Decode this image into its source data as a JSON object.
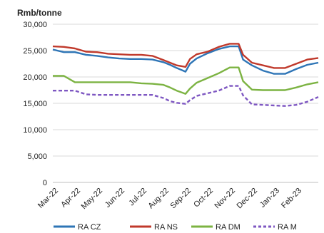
{
  "chart_data": {
    "type": "line",
    "y_unit": "Rmb/tonne",
    "ylim": [
      0,
      30000
    ],
    "y_ticks": [
      "30,000",
      "25,000",
      "20,000",
      "15,000",
      "10,000",
      "5,000",
      "0"
    ],
    "y_tick_values": [
      30000,
      25000,
      20000,
      15000,
      10000,
      5000,
      0
    ],
    "x_tick_labels": [
      "Mar-22",
      "Apr-22",
      "May-22",
      "Jun-22",
      "Jul-22",
      "Aug-22",
      "Sep-22",
      "Oct-22",
      "Nov-22",
      "Dec-22",
      "Jan-23",
      "Feb-23"
    ],
    "x_range": [
      "Mar-22",
      "Mar-23"
    ],
    "grid": "horizontal",
    "legend_position": "bottom",
    "series": [
      {
        "name": "RA CZ",
        "color": "#2e75b6",
        "dash": "solid",
        "points": [
          [
            0,
            25200
          ],
          [
            0.5,
            24700
          ],
          [
            1,
            24700
          ],
          [
            1.5,
            24200
          ],
          [
            2,
            24000
          ],
          [
            2.5,
            23700
          ],
          [
            3,
            23500
          ],
          [
            3.5,
            23400
          ],
          [
            4,
            23400
          ],
          [
            4.5,
            23300
          ],
          [
            5,
            22800
          ],
          [
            5.3,
            22300
          ],
          [
            5.6,
            21700
          ],
          [
            6,
            21000
          ],
          [
            6.2,
            22500
          ],
          [
            6.5,
            23500
          ],
          [
            7,
            24500
          ],
          [
            7.5,
            25300
          ],
          [
            8,
            25800
          ],
          [
            8.4,
            25800
          ],
          [
            8.6,
            23300
          ],
          [
            9,
            22200
          ],
          [
            9.5,
            21200
          ],
          [
            10,
            20600
          ],
          [
            10.5,
            20600
          ],
          [
            11,
            21500
          ],
          [
            11.5,
            22300
          ],
          [
            12,
            22700
          ]
        ]
      },
      {
        "name": "RA NS",
        "color": "#c0392b",
        "dash": "solid",
        "points": [
          [
            0,
            25800
          ],
          [
            0.5,
            25700
          ],
          [
            1,
            25400
          ],
          [
            1.5,
            24800
          ],
          [
            2,
            24700
          ],
          [
            2.5,
            24400
          ],
          [
            3,
            24300
          ],
          [
            3.5,
            24200
          ],
          [
            4,
            24200
          ],
          [
            4.5,
            24000
          ],
          [
            5,
            23200
          ],
          [
            5.3,
            22700
          ],
          [
            5.6,
            22200
          ],
          [
            6,
            21900
          ],
          [
            6.2,
            23400
          ],
          [
            6.5,
            24300
          ],
          [
            7,
            24800
          ],
          [
            7.5,
            25700
          ],
          [
            8,
            26300
          ],
          [
            8.4,
            26300
          ],
          [
            8.6,
            24200
          ],
          [
            9,
            22700
          ],
          [
            9.5,
            22200
          ],
          [
            10,
            21700
          ],
          [
            10.5,
            21700
          ],
          [
            11,
            22500
          ],
          [
            11.5,
            23300
          ],
          [
            12,
            23600
          ]
        ]
      },
      {
        "name": "RA DM",
        "color": "#7cb342",
        "dash": "solid",
        "points": [
          [
            0,
            20200
          ],
          [
            0.5,
            20200
          ],
          [
            1,
            19000
          ],
          [
            1.5,
            19000
          ],
          [
            2,
            19000
          ],
          [
            2.5,
            19000
          ],
          [
            3,
            19000
          ],
          [
            3.5,
            19000
          ],
          [
            4,
            18800
          ],
          [
            4.5,
            18700
          ],
          [
            5,
            18500
          ],
          [
            5.3,
            18000
          ],
          [
            5.6,
            17400
          ],
          [
            6,
            16800
          ],
          [
            6.2,
            17800
          ],
          [
            6.5,
            18900
          ],
          [
            7,
            19800
          ],
          [
            7.5,
            20700
          ],
          [
            8,
            21800
          ],
          [
            8.4,
            21800
          ],
          [
            8.6,
            19200
          ],
          [
            9,
            17600
          ],
          [
            9.5,
            17500
          ],
          [
            10,
            17500
          ],
          [
            10.5,
            17500
          ],
          [
            11,
            18000
          ],
          [
            11.5,
            18600
          ],
          [
            12,
            19000
          ]
        ]
      },
      {
        "name": "RA M",
        "color": "#7e57c2",
        "dash": "dashed",
        "points": [
          [
            0,
            17400
          ],
          [
            0.5,
            17400
          ],
          [
            1,
            17400
          ],
          [
            1.5,
            16700
          ],
          [
            2,
            16600
          ],
          [
            2.5,
            16600
          ],
          [
            3,
            16600
          ],
          [
            3.5,
            16600
          ],
          [
            4,
            16600
          ],
          [
            4.5,
            16600
          ],
          [
            5,
            16000
          ],
          [
            5.3,
            15400
          ],
          [
            5.6,
            15100
          ],
          [
            6,
            14900
          ],
          [
            6.2,
            15600
          ],
          [
            6.5,
            16400
          ],
          [
            7,
            16900
          ],
          [
            7.5,
            17400
          ],
          [
            8,
            18300
          ],
          [
            8.4,
            18300
          ],
          [
            8.6,
            16500
          ],
          [
            9,
            14800
          ],
          [
            9.5,
            14700
          ],
          [
            10,
            14600
          ],
          [
            10.5,
            14500
          ],
          [
            11,
            14700
          ],
          [
            11.5,
            15300
          ],
          [
            12,
            16200
          ]
        ]
      }
    ]
  }
}
